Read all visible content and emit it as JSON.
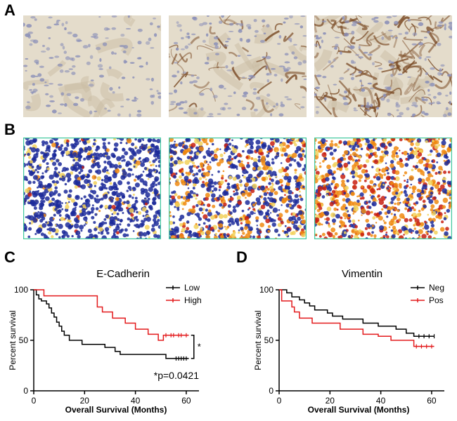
{
  "figure": {
    "panel_labels": [
      "A",
      "B",
      "C",
      "D"
    ]
  },
  "colors": {
    "ihc_background": "#e4dccb",
    "ihc_nuclei": "#8a8fb8",
    "ihc_brown": "#7a4a25",
    "analysis_blue": "#1c2a9a",
    "analysis_orange": "#f08a10",
    "analysis_red": "#c81e10",
    "analysis_border": "#44c9a0",
    "low_series": "#000000",
    "high_series": "#e31a1c"
  },
  "chart_data": [
    {
      "type": "line",
      "step": true,
      "title": "E-Cadherin",
      "xlabel": "Overall Survival (Months)",
      "ylabel": "Percent survival",
      "xlim": [
        0,
        65
      ],
      "ylim": [
        0,
        100
      ],
      "xticks": [
        "0",
        "20",
        "40",
        "60"
      ],
      "yticks": [
        "0",
        "50",
        "100"
      ],
      "legend_position": "top-right",
      "annotation": "*p=0.0421",
      "bracket_label": "*",
      "series": [
        {
          "name": "Low",
          "color": "#000000",
          "points": [
            [
              0,
              100
            ],
            [
              1,
              95
            ],
            [
              2,
              91
            ],
            [
              3,
              89
            ],
            [
              5,
              86
            ],
            [
              6,
              82
            ],
            [
              7,
              77
            ],
            [
              8,
              73
            ],
            [
              9,
              68
            ],
            [
              10,
              64
            ],
            [
              11,
              59
            ],
            [
              12,
              55
            ],
            [
              14,
              50
            ],
            [
              19,
              46
            ],
            [
              28,
              43
            ],
            [
              32,
              39
            ],
            [
              34,
              36
            ],
            [
              52,
              32
            ],
            [
              61,
              32
            ]
          ],
          "censored": [
            [
              56,
              32
            ],
            [
              57,
              32
            ],
            [
              58,
              32
            ],
            [
              59,
              32
            ],
            [
              60,
              32
            ]
          ]
        },
        {
          "name": "High",
          "color": "#e31a1c",
          "points": [
            [
              0,
              100
            ],
            [
              4,
              94
            ],
            [
              25,
              83
            ],
            [
              27,
              78
            ],
            [
              31,
              72
            ],
            [
              36,
              67
            ],
            [
              40,
              61
            ],
            [
              45,
              56
            ],
            [
              49,
              50
            ],
            [
              51,
              55
            ],
            [
              61,
              55
            ]
          ],
          "censored": [
            [
              52,
              55
            ],
            [
              54,
              55
            ],
            [
              55,
              55
            ],
            [
              57,
              55
            ],
            [
              58,
              55
            ],
            [
              60,
              55
            ]
          ]
        }
      ]
    },
    {
      "type": "line",
      "step": true,
      "title": "Vimentin",
      "xlabel": "Overall Survival (Months)",
      "ylabel": "Percent survival",
      "xlim": [
        0,
        65
      ],
      "ylim": [
        0,
        100
      ],
      "xticks": [
        "0",
        "20",
        "40",
        "60"
      ],
      "yticks": [
        "0",
        "50",
        "100"
      ],
      "legend_position": "top-right",
      "series": [
        {
          "name": "Neg",
          "color": "#000000",
          "points": [
            [
              0,
              100
            ],
            [
              3,
              97
            ],
            [
              5,
              93
            ],
            [
              8,
              90
            ],
            [
              10,
              87
            ],
            [
              12,
              84
            ],
            [
              14,
              80
            ],
            [
              19,
              77
            ],
            [
              21,
              74
            ],
            [
              25,
              71
            ],
            [
              33,
              67
            ],
            [
              39,
              64
            ],
            [
              46,
              61
            ],
            [
              50,
              57
            ],
            [
              53,
              54
            ],
            [
              61,
              54
            ]
          ],
          "censored": [
            [
              55,
              54
            ],
            [
              57,
              54
            ],
            [
              59,
              54
            ],
            [
              61,
              54
            ]
          ]
        },
        {
          "name": "Pos",
          "color": "#e31a1c",
          "points": [
            [
              0,
              100
            ],
            [
              1,
              89
            ],
            [
              5,
              83
            ],
            [
              6,
              78
            ],
            [
              8,
              72
            ],
            [
              13,
              67
            ],
            [
              24,
              61
            ],
            [
              33,
              56
            ],
            [
              39,
              54
            ],
            [
              44,
              50
            ],
            [
              53,
              44
            ],
            [
              61,
              44
            ]
          ],
          "censored": [
            [
              54,
              44
            ],
            [
              56,
              44
            ],
            [
              58,
              44
            ],
            [
              60,
              44
            ]
          ]
        }
      ]
    }
  ]
}
